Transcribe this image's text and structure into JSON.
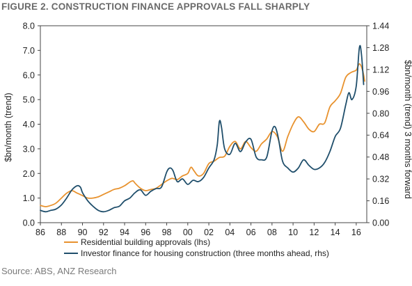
{
  "figure": {
    "title": "FIGURE 2. CONSTRUCTION FINANCE APPROVALS FALL SHARPLY",
    "source": "Source: ABS, ANZ Research"
  },
  "chart_data": {
    "type": "line",
    "title": "FIGURE 2. CONSTRUCTION FINANCE APPROVALS FALL SHARPLY",
    "xlabel": "",
    "ylabel": "$bn/month (trend)",
    "y2label": "$bn/month (trend) 3 months forward",
    "xlim": [
      1986,
      2017
    ],
    "ylim": [
      0,
      8
    ],
    "y2lim": [
      0,
      1.44
    ],
    "x_ticks": [
      1986,
      1988,
      1990,
      1992,
      1994,
      1996,
      1998,
      2000,
      2002,
      2004,
      2006,
      2008,
      2010,
      2012,
      2014,
      2016
    ],
    "x_tick_labels": [
      "86",
      "88",
      "90",
      "92",
      "94",
      "96",
      "98",
      "00",
      "02",
      "04",
      "06",
      "08",
      "10",
      "12",
      "14",
      "16"
    ],
    "y_ticks": [
      0,
      1,
      2,
      3,
      4,
      5,
      6,
      7,
      8
    ],
    "y_tick_labels": [
      "0.0",
      "1.0",
      "2.0",
      "3.0",
      "4.0",
      "5.0",
      "6.0",
      "7.0",
      "8.0"
    ],
    "y2_ticks": [
      0,
      0.16,
      0.32,
      0.48,
      0.64,
      0.8,
      0.96,
      1.12,
      1.28,
      1.44
    ],
    "y2_tick_labels": [
      "0.00",
      "0.16",
      "0.32",
      "0.48",
      "0.64",
      "0.80",
      "0.96",
      "1.12",
      "1.28",
      "1.44"
    ],
    "grid": false,
    "legend_position": "bottom-left",
    "series": [
      {
        "name": "Residential building approvals (lhs)",
        "axis": "left",
        "color": "#e8922e",
        "x": [
          1986.0,
          1986.5,
          1987.0,
          1987.5,
          1988.0,
          1988.5,
          1989.0,
          1989.5,
          1990.0,
          1990.5,
          1991.0,
          1991.5,
          1992.0,
          1992.5,
          1993.0,
          1993.5,
          1994.0,
          1994.5,
          1994.8,
          1995.0,
          1995.5,
          1996.0,
          1996.5,
          1997.0,
          1997.5,
          1998.0,
          1998.5,
          1999.0,
          1999.5,
          2000.0,
          2000.3,
          2000.6,
          2001.0,
          2001.5,
          2002.0,
          2002.5,
          2003.0,
          2003.5,
          2004.0,
          2004.5,
          2005.0,
          2005.5,
          2006.0,
          2006.5,
          2007.0,
          2007.5,
          2008.0,
          2008.5,
          2009.0,
          2009.5,
          2010.0,
          2010.5,
          2011.0,
          2011.5,
          2012.0,
          2012.5,
          2013.0,
          2013.5,
          2014.0,
          2014.5,
          2015.0,
          2015.5,
          2016.0,
          2016.3,
          2016.6,
          2016.8
        ],
        "y": [
          0.7,
          0.65,
          0.7,
          0.8,
          1.0,
          1.2,
          1.3,
          1.2,
          1.1,
          1.0,
          1.0,
          1.05,
          1.15,
          1.25,
          1.35,
          1.4,
          1.5,
          1.65,
          1.7,
          1.6,
          1.4,
          1.3,
          1.35,
          1.4,
          1.55,
          1.7,
          1.8,
          1.75,
          1.9,
          2.0,
          2.25,
          2.1,
          1.9,
          2.0,
          2.4,
          2.5,
          2.65,
          2.7,
          3.1,
          3.3,
          3.0,
          3.3,
          3.05,
          2.9,
          3.2,
          3.4,
          3.7,
          3.5,
          2.9,
          3.5,
          4.0,
          4.3,
          4.1,
          3.8,
          3.7,
          4.0,
          4.05,
          4.7,
          4.95,
          5.25,
          5.9,
          6.1,
          6.2,
          6.45,
          6.2,
          5.75
        ]
      },
      {
        "name": "Investor finance for housing construction (three months ahead, rhs)",
        "axis": "right",
        "color": "#1f4e6b",
        "x": [
          1986.0,
          1986.5,
          1987.0,
          1987.5,
          1988.0,
          1988.5,
          1989.0,
          1989.5,
          1989.8,
          1990.0,
          1990.5,
          1991.0,
          1991.5,
          1992.0,
          1992.5,
          1993.0,
          1993.5,
          1994.0,
          1994.5,
          1995.0,
          1995.5,
          1996.0,
          1996.5,
          1997.0,
          1997.5,
          1998.0,
          1998.3,
          1998.6,
          1999.0,
          1999.5,
          2000.0,
          2000.5,
          2001.0,
          2001.5,
          2002.0,
          2002.5,
          2002.8,
          2003.0,
          2003.2,
          2003.5,
          2004.0,
          2004.5,
          2005.0,
          2005.5,
          2006.0,
          2006.5,
          2007.0,
          2007.5,
          2008.0,
          2008.3,
          2008.6,
          2009.0,
          2009.5,
          2010.0,
          2010.5,
          2011.0,
          2011.5,
          2012.0,
          2012.5,
          2013.0,
          2013.5,
          2014.0,
          2014.5,
          2015.0,
          2015.3,
          2015.6,
          2016.0,
          2016.3,
          2016.5,
          2016.7
        ],
        "y": [
          0.09,
          0.08,
          0.09,
          0.1,
          0.13,
          0.18,
          0.24,
          0.27,
          0.26,
          0.22,
          0.16,
          0.12,
          0.09,
          0.08,
          0.09,
          0.11,
          0.12,
          0.16,
          0.18,
          0.22,
          0.24,
          0.2,
          0.23,
          0.25,
          0.26,
          0.37,
          0.4,
          0.38,
          0.3,
          0.32,
          0.28,
          0.31,
          0.3,
          0.33,
          0.4,
          0.46,
          0.57,
          0.74,
          0.7,
          0.54,
          0.5,
          0.58,
          0.52,
          0.59,
          0.61,
          0.48,
          0.46,
          0.48,
          0.67,
          0.7,
          0.62,
          0.45,
          0.4,
          0.37,
          0.4,
          0.46,
          0.42,
          0.39,
          0.4,
          0.44,
          0.52,
          0.63,
          0.69,
          0.86,
          0.95,
          0.9,
          1.0,
          1.28,
          1.23,
          1.01
        ]
      }
    ]
  }
}
